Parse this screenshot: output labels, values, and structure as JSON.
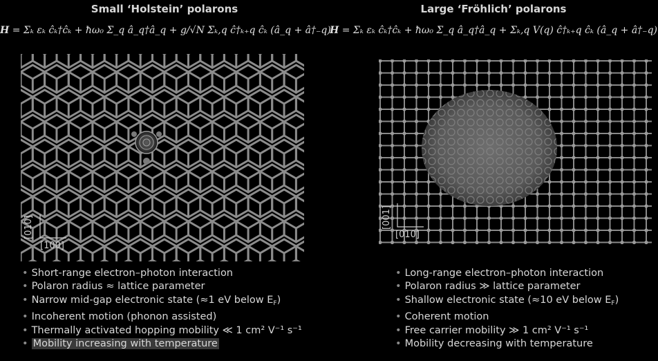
{
  "left": {
    "title": "Small ‘Holstein’ polarons",
    "eq_lhs": "H",
    "eq_rhs": "= Σₖ εₖ ĉₖ†ĉₖ + ħω₀ Σ_q â_q†â_q + g/√N Σₖ,q ĉ†ₖ₊q ĉₖ (â_q + â†₋q)",
    "axis_v": "[010]",
    "axis_h": "[100]",
    "bullets": [
      "Short-range electron–photon interaction",
      "Polaron radius ≈ lattice parameter",
      "Narrow mid-gap electronic state (≈1 eV below E",
      "Incoherent motion (phonon assisted)",
      "Thermally activated hopping mobility ≪ 1 cm² V⁻¹ s⁻¹",
      "Mobility increasing with temperature"
    ],
    "bullet2_tail": ")",
    "fermi_sub": "F"
  },
  "right": {
    "title": "Large ‘Fröhlich’ polarons",
    "eq_lhs": "H",
    "eq_rhs": "= Σₖ εₖ ĉₖ†ĉₖ + ħω₀ Σ_q â_q†â_q + Σₖ,q V(q) ĉ†ₖ₊q ĉₖ (â_q + â†₋q)",
    "axis_v": "[001]",
    "axis_h": "[010]",
    "bullets": [
      "Long-range electron–photon interaction",
      "Polaron radius ≫ lattice parameter",
      "Shallow electronic state (≈10 eV below E",
      "Coherent motion",
      "Free carrier mobility ≫ 1 cm² V⁻¹ s⁻¹",
      "Mobility decreasing with temperature"
    ],
    "bullet2_tail": ")",
    "fermi_sub": "F"
  },
  "colors": {
    "background": "#000000",
    "lattice": "#8c8c8c",
    "highlight": "#3a3a3a"
  }
}
